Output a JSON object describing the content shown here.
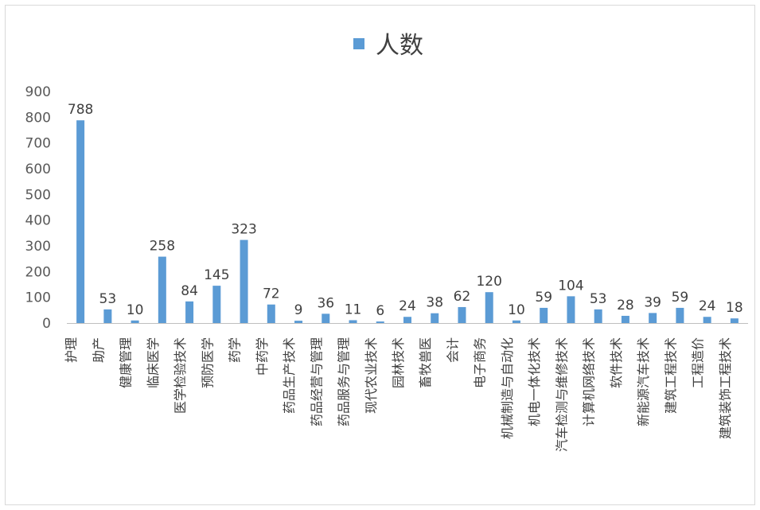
{
  "chart_data": {
    "type": "bar",
    "legend": {
      "label": "人数",
      "position": "top",
      "color": "#5b9bd5"
    },
    "categories": [
      "护理",
      "助产",
      "健康管理",
      "临床医学",
      "医学检验技术",
      "预防医学",
      "药学",
      "中药学",
      "药品生产技术",
      "药品经营与管理",
      "药品服务与管理",
      "现代农业技术",
      "园林技术",
      "畜牧兽医",
      "会计",
      "电子商务",
      "机械制造与自动化",
      "机电一体化技术",
      "汽车检测与维修技术",
      "计算机网络技术",
      "软件技术",
      "新能源汽车技术",
      "建筑工程技术",
      "工程造价",
      "建筑装饰工程技术"
    ],
    "series": [
      {
        "name": "人数",
        "values": [
          788,
          53,
          10,
          258,
          84,
          145,
          323,
          72,
          9,
          36,
          11,
          6,
          24,
          38,
          62,
          120,
          10,
          59,
          104,
          53,
          28,
          39,
          59,
          24,
          18
        ]
      }
    ],
    "ylim": [
      0,
      900
    ],
    "yticks": [
      0,
      100,
      200,
      300,
      400,
      500,
      600,
      700,
      800,
      900
    ],
    "grid": false,
    "bar_color": "#5b9bd5",
    "axis_color": "#bfbfbf"
  }
}
